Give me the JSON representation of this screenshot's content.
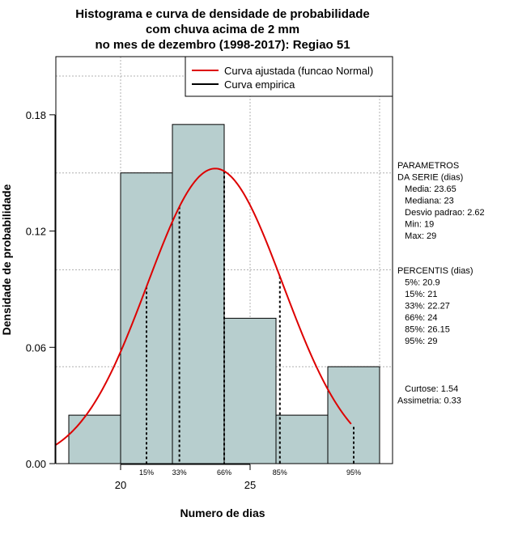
{
  "chart_data": {
    "type": "bar",
    "title_lines": [
      "Histograma e curva de densidade de probabilidade",
      "com chuva acima de 2 mm",
      "no mes de dezembro (1998-2017): Regiao 51"
    ],
    "xlabel": "Numero de dias",
    "ylabel": "Densidade de probabilidade",
    "xlim": [
      17.5,
      30.5
    ],
    "ylim": [
      0,
      0.21
    ],
    "x_ticks": [
      20,
      25
    ],
    "y_ticks": [
      0.0,
      0.06,
      0.12,
      0.18
    ],
    "y_tick_labels": [
      "0.00",
      "0.06",
      "0.12",
      "0.18"
    ],
    "x_grid": [
      20,
      25,
      30
    ],
    "y_grid": [
      0.0,
      0.05,
      0.1,
      0.15,
      0.2
    ],
    "bins": [
      {
        "from": 18,
        "to": 20,
        "density": 0.025
      },
      {
        "from": 20,
        "to": 22,
        "density": 0.15
      },
      {
        "from": 22,
        "to": 24,
        "density": 0.175
      },
      {
        "from": 24,
        "to": 26,
        "density": 0.075
      },
      {
        "from": 26,
        "to": 28,
        "density": 0.025
      },
      {
        "from": 28,
        "to": 30,
        "density": 0.05
      }
    ],
    "bar_fill": "#b7cece",
    "normal_curve": {
      "name": "Curva ajustada (funcao Normal)",
      "mean": 23.65,
      "sd": 2.62,
      "x_range": [
        17.5,
        28.9
      ],
      "color": "#dd0000"
    },
    "empirical_curve": {
      "name": "Curva empirica",
      "color": "#000000"
    },
    "percentile_markers": [
      {
        "label": "15%",
        "x": 21
      },
      {
        "label": "33%",
        "x": 22.27
      },
      {
        "label": "66%",
        "x": 24
      },
      {
        "label": "85%",
        "x": 26.15
      },
      {
        "label": "95%",
        "x": 29
      }
    ],
    "legend": {
      "position": "top-right",
      "entries": [
        {
          "label": "Curva ajustada (funcao Normal)",
          "color": "#dd0000"
        },
        {
          "label": "Curva empirica",
          "color": "#000000"
        }
      ]
    },
    "side_panel": {
      "parametros": [
        "PARAMETROS",
        "DA SERIE (dias)",
        "   Media: 23.65",
        "   Mediana: 23",
        "   Desvio padrao: 2.62",
        "   Min: 19",
        "   Max: 29"
      ],
      "percentis": [
        "PERCENTIS (dias)",
        "   5%: 20.9",
        "   15%: 21",
        "   33%: 22.27",
        "   66%: 24",
        "   85%: 26.15",
        "   95%: 29"
      ],
      "shape": [
        "   Curtose: 1.54",
        "Assimetria: 0.33"
      ]
    }
  }
}
